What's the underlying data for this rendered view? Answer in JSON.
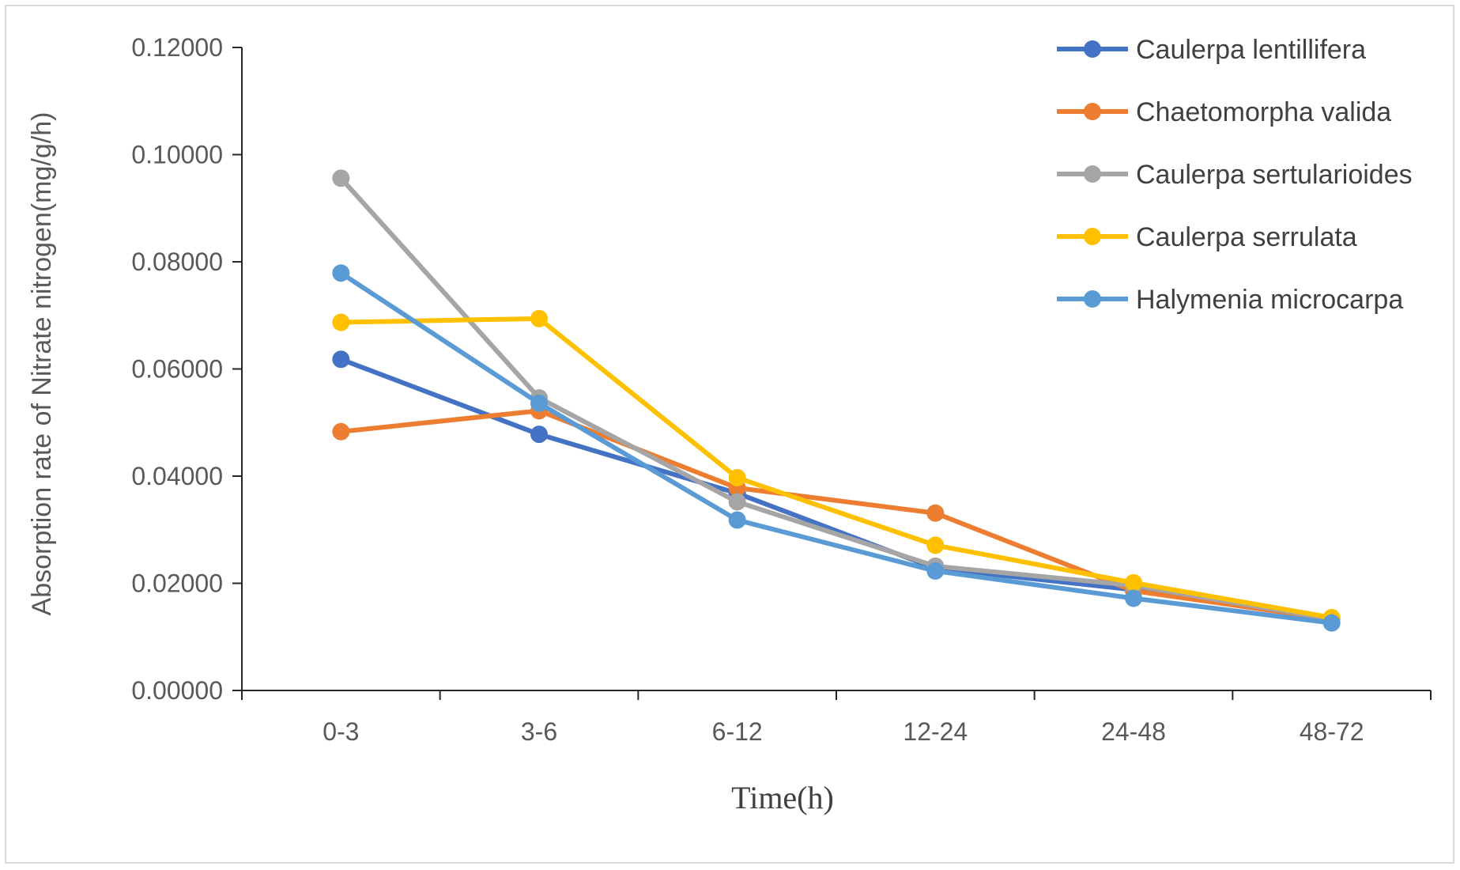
{
  "chart_data": {
    "type": "line",
    "title": "",
    "xlabel": "Time(h)",
    "ylabel": "Absorption rate of Nitrate nitrogen(mg/g/h)",
    "categories": [
      "0-3",
      "3-6",
      "6-12",
      "12-24",
      "24-48",
      "48-72"
    ],
    "ylim": [
      0,
      0.12
    ],
    "yticks": [
      "0.00000",
      "0.02000",
      "0.04000",
      "0.06000",
      "0.08000",
      "0.10000",
      "0.12000"
    ],
    "grid": false,
    "legend_position": "top-right",
    "series": [
      {
        "name": "Caulerpa lentillifera",
        "color": "#4472C4",
        "values": [
          0.0618,
          0.0478,
          0.0368,
          0.0228,
          0.0188,
          0.0135
        ]
      },
      {
        "name": "Chaetomorpha valida",
        "color": "#ED7D31",
        "values": [
          0.0483,
          0.0522,
          0.0378,
          0.0331,
          0.0186,
          0.0133
        ]
      },
      {
        "name": "Caulerpa sertularioides",
        "color": "#A5A5A5",
        "values": [
          0.0956,
          0.0546,
          0.0352,
          0.0232,
          0.0196,
          0.0133
        ]
      },
      {
        "name": "Caulerpa serrulata",
        "color": "#FFC000",
        "values": [
          0.0687,
          0.0694,
          0.0397,
          0.0271,
          0.0201,
          0.0136
        ]
      },
      {
        "name": "Halymenia microcarpa",
        "color": "#5B9BD5",
        "values": [
          0.0779,
          0.0536,
          0.0318,
          0.0223,
          0.0172,
          0.0126
        ]
      }
    ]
  }
}
